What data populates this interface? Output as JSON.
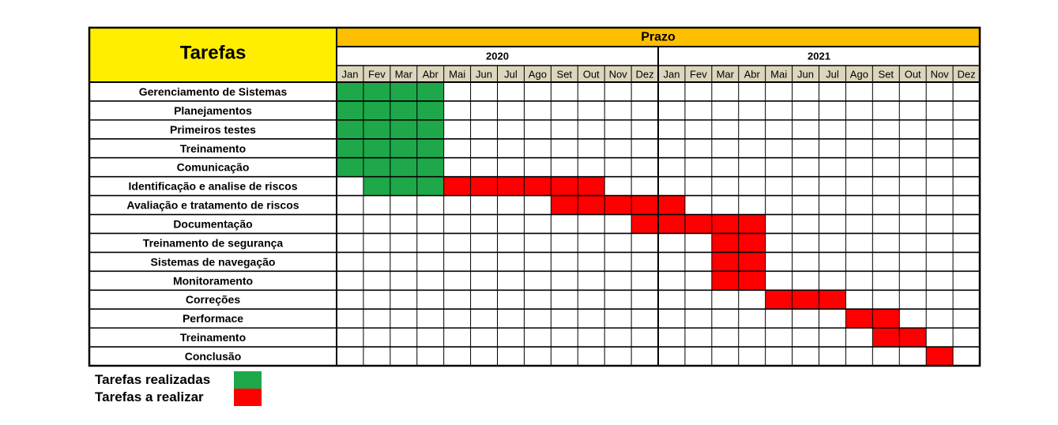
{
  "chart_data": {
    "type": "gantt",
    "title": "Prazo",
    "task_header": "Tarefas",
    "years": [
      "2020",
      "2021"
    ],
    "months": [
      "Jan",
      "Fev",
      "Mar",
      "Abr",
      "Mai",
      "Jun",
      "Jul",
      "Ago",
      "Set",
      "Out",
      "Nov",
      "Dez",
      "Jan",
      "Fev",
      "Mar",
      "Abr",
      "Mai",
      "Jun",
      "Jul",
      "Ago",
      "Set",
      "Out",
      "Nov",
      "Dez"
    ],
    "tasks": [
      {
        "name": "Gerenciamento de Sistemas",
        "done": [
          0,
          1,
          2,
          3
        ],
        "todo": []
      },
      {
        "name": "Planejamentos",
        "done": [
          0,
          1,
          2,
          3
        ],
        "todo": []
      },
      {
        "name": "Primeiros testes",
        "done": [
          0,
          1,
          2,
          3
        ],
        "todo": []
      },
      {
        "name": "Treinamento",
        "done": [
          0,
          1,
          2,
          3
        ],
        "todo": []
      },
      {
        "name": "Comunicação",
        "done": [
          0,
          1,
          2,
          3
        ],
        "todo": []
      },
      {
        "name": "Identificação e analise de riscos",
        "done": [
          1,
          2,
          3
        ],
        "todo": [
          4,
          5,
          6,
          7,
          8,
          9
        ]
      },
      {
        "name": "Avaliação e tratamento de riscos",
        "done": [],
        "todo": [
          8,
          9,
          10,
          11,
          12
        ]
      },
      {
        "name": "Documentação",
        "done": [],
        "todo": [
          11,
          12,
          13,
          14,
          15
        ]
      },
      {
        "name": "Treinamento de segurança",
        "done": [],
        "todo": [
          14,
          15
        ]
      },
      {
        "name": "Sistemas de navegação",
        "done": [],
        "todo": [
          14,
          15
        ]
      },
      {
        "name": "Monitoramento",
        "done": [],
        "todo": [
          14,
          15
        ]
      },
      {
        "name": "Correções",
        "done": [],
        "todo": [
          16,
          17,
          18
        ]
      },
      {
        "name": "Performace",
        "done": [],
        "todo": [
          19,
          20
        ]
      },
      {
        "name": "Treinamento",
        "done": [],
        "todo": [
          20,
          21
        ]
      },
      {
        "name": "Conclusão",
        "done": [],
        "todo": [
          22
        ]
      }
    ],
    "legend": [
      {
        "label": "Tarefas realizadas",
        "color": "#1ea84a"
      },
      {
        "label": "Tarefas a realizar",
        "color": "#ff0000"
      }
    ],
    "colors": {
      "done": "#1ea84a",
      "todo": "#ff0000",
      "header_yellow": "#ffee00",
      "header_orange": "#ffbf00",
      "month_bg": "#dcd6bd"
    }
  },
  "legend": {
    "done_label": "Tarefas realizadas",
    "todo_label": "Tarefas a realizar"
  }
}
